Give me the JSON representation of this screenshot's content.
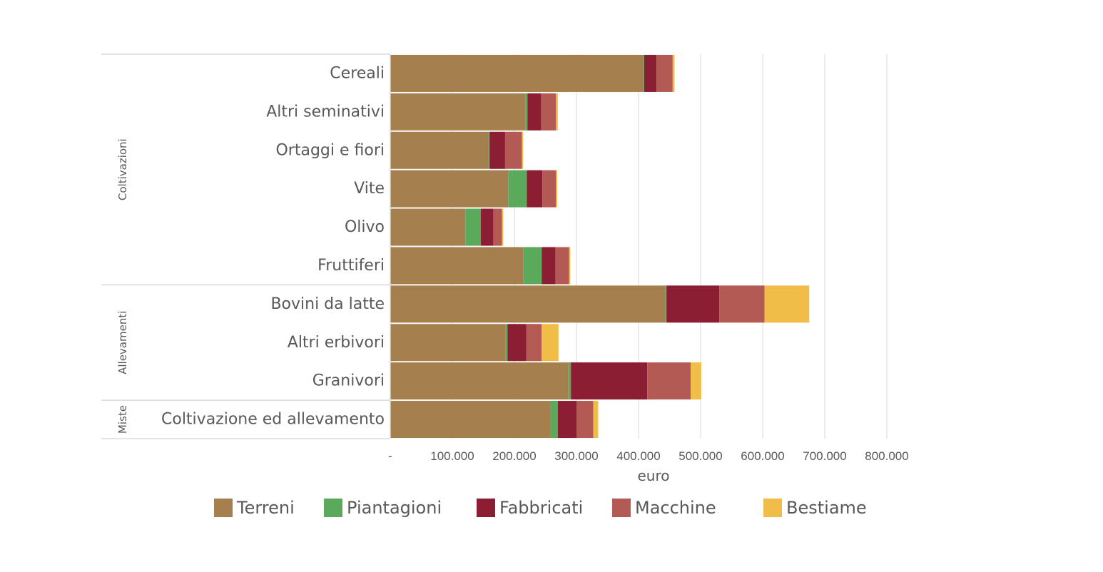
{
  "chart_data": {
    "type": "bar",
    "orientation": "horizontal",
    "stacked": true,
    "categories": [
      "Cereali",
      "Altri seminativi",
      "Ortaggi e fiori",
      "Vite",
      "Olivo",
      "Fruttiferi",
      "Bovini da latte",
      "Altri erbivori",
      "Granivori",
      "Coltivazione ed allevamento"
    ],
    "groups": [
      {
        "label": "Coltivazioni",
        "categories": [
          "Cereali",
          "Altri seminativi",
          "Ortaggi e fiori",
          "Vite",
          "Olivo",
          "Fruttiferi"
        ]
      },
      {
        "label": "Allevamenti",
        "categories": [
          "Bovini da latte",
          "Altri erbivori",
          "Granivori"
        ]
      },
      {
        "label": "Miste",
        "categories": [
          "Coltivazione ed allevamento"
        ]
      }
    ],
    "series": [
      {
        "name": "Terreni",
        "color": "#A5804E",
        "values": [
          407000,
          218000,
          158000,
          190000,
          121000,
          214000,
          443000,
          186000,
          287000,
          258000
        ]
      },
      {
        "name": "Piantagioni",
        "color": "#5BA95A",
        "values": [
          2000,
          3000,
          2000,
          30000,
          25000,
          30000,
          2000,
          3000,
          4000,
          12000
        ]
      },
      {
        "name": "Fabbricati",
        "color": "#8B1E33",
        "values": [
          20000,
          22000,
          25000,
          25000,
          20000,
          22000,
          85000,
          30000,
          123000,
          30000
        ]
      },
      {
        "name": "Macchine",
        "color": "#B45A55",
        "values": [
          26000,
          24000,
          27000,
          22000,
          14000,
          22000,
          73000,
          25000,
          70000,
          27000
        ]
      },
      {
        "name": "Bestiame",
        "color": "#F0BE48",
        "values": [
          3000,
          3000,
          2000,
          2000,
          2000,
          2000,
          72000,
          27000,
          17000,
          8000
        ]
      }
    ],
    "xlim": [
      0,
      800000
    ],
    "xticks": [
      0,
      100000,
      200000,
      300000,
      400000,
      500000,
      600000,
      700000,
      800000
    ],
    "xtick_labels": [
      "-",
      "100.000",
      "200.000",
      "300.000",
      "400.000",
      "500.000",
      "600.000",
      "700.000",
      "800.000"
    ],
    "xlabel": "euro",
    "ylabel": "",
    "title": "",
    "grid": true,
    "legend_position": "bottom"
  }
}
